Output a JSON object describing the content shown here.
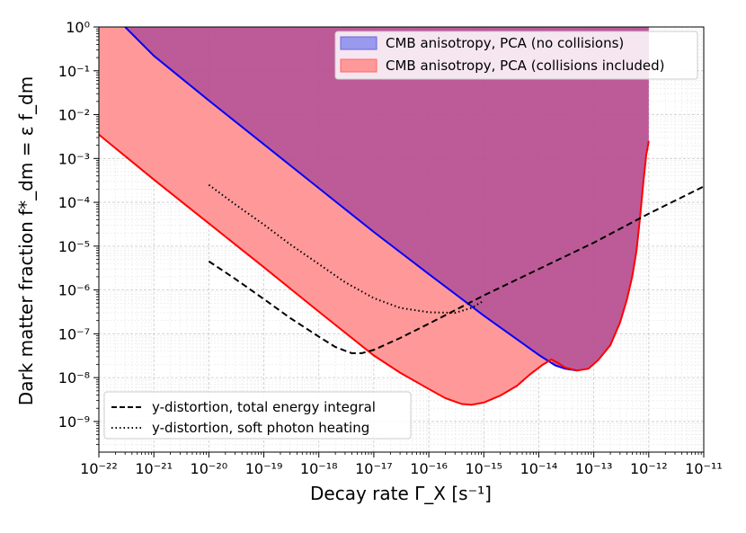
{
  "chart_data": {
    "type": "area",
    "title": "",
    "xlabel": "Decay rate Γ_X [s⁻¹]",
    "ylabel": "Dark matter fraction f*_dm = ε f_dm",
    "xscale": "log",
    "yscale": "log",
    "xlim": [
      1e-22,
      1e-11
    ],
    "ylim": [
      2e-10,
      1
    ],
    "grid": true,
    "x_tick_labels": [
      "10⁻²²",
      "10⁻²¹",
      "10⁻²⁰",
      "10⁻¹⁹",
      "10⁻¹⁸",
      "10⁻¹⁷",
      "10⁻¹⁶",
      "10⁻¹⁵",
      "10⁻¹⁴",
      "10⁻¹³",
      "10⁻¹²",
      "10⁻¹¹"
    ],
    "y_tick_labels": [
      "10⁰",
      "10⁻¹",
      "10⁻²",
      "10⁻³",
      "10⁻⁴",
      "10⁻⁵",
      "10⁻⁶",
      "10⁻⁷",
      "10⁻⁸",
      "10⁻⁹"
    ],
    "series": [
      {
        "name": "CMB anisotropy, PCA (no collisions)",
        "kind": "shaded-region",
        "fill_color": "#9999ee",
        "region_color": "#b84f91",
        "edge_color": "#0000ff",
        "lower_boundary": [
          [
            3e-22,
            1
          ],
          [
            1e-21,
            0.22
          ],
          [
            1e-20,
            0.021
          ],
          [
            1e-19,
            0.0021
          ],
          [
            1e-18,
            0.00021
          ],
          [
            1e-17,
            2.1e-05
          ],
          [
            1e-16,
            2.3e-06
          ],
          [
            1e-15,
            2.6e-07
          ],
          [
            1e-14,
            3.3e-08
          ],
          [
            2e-14,
            1.9e-08
          ],
          [
            3e-14,
            1.6e-08
          ],
          [
            5e-14,
            1.45e-08
          ],
          [
            8e-14,
            1.6e-08
          ],
          [
            1.2e-13,
            2.5e-08
          ],
          [
            2e-13,
            5.5e-08
          ],
          [
            3e-13,
            1.8e-07
          ],
          [
            4e-13,
            6e-07
          ],
          [
            5e-13,
            2e-06
          ],
          [
            6e-13,
            8e-06
          ],
          [
            7e-13,
            5e-05
          ],
          [
            8e-13,
            0.0003
          ],
          [
            9e-13,
            0.0012
          ],
          [
            1e-12,
            0.0025
          ]
        ],
        "x_extent": [
          3e-22,
          1e-12
        ]
      },
      {
        "name": "CMB anisotropy, PCA (collisions included)",
        "kind": "shaded-region",
        "fill_color": "#ff9999",
        "region_color": "#ff9999",
        "edge_color": "#ff0000",
        "upper_boundary": [
          [
            1e-22,
            1
          ],
          [
            3e-22,
            1
          ],
          [
            1e-21,
            0.22
          ],
          [
            1e-20,
            0.021
          ],
          [
            1e-19,
            0.0021
          ],
          [
            1e-18,
            0.00021
          ],
          [
            1e-17,
            2.1e-05
          ],
          [
            1e-16,
            2.3e-06
          ],
          [
            1e-15,
            2.6e-07
          ],
          [
            1e-14,
            3.3e-08
          ],
          [
            1.8e-14,
            2e-08
          ]
        ],
        "lower_boundary": [
          [
            1e-22,
            0.0035
          ],
          [
            1e-21,
            0.00033
          ],
          [
            1e-20,
            3.3e-05
          ],
          [
            1e-19,
            3.3e-06
          ],
          [
            1e-18,
            3.2e-07
          ],
          [
            1e-17,
            3.2e-08
          ],
          [
            3e-17,
            1.3e-08
          ],
          [
            1e-16,
            5.5e-09
          ],
          [
            2e-16,
            3.4e-09
          ],
          [
            4e-16,
            2.5e-09
          ],
          [
            6e-16,
            2.4e-09
          ],
          [
            1e-15,
            2.7e-09
          ],
          [
            2e-15,
            3.9e-09
          ],
          [
            4e-15,
            6.5e-09
          ],
          [
            7e-15,
            1.2e-08
          ],
          [
            1.2e-14,
            2e-08
          ],
          [
            1.7e-14,
            2.6e-08
          ],
          [
            2.2e-14,
            2.2e-08
          ],
          [
            3e-14,
            1.7e-08
          ],
          [
            5e-14,
            1.45e-08
          ],
          [
            8e-14,
            1.6e-08
          ],
          [
            1.2e-13,
            2.5e-08
          ],
          [
            2e-13,
            5.5e-08
          ],
          [
            3e-13,
            1.8e-07
          ],
          [
            4e-13,
            6e-07
          ],
          [
            5e-13,
            2e-06
          ],
          [
            6e-13,
            8e-06
          ],
          [
            7e-13,
            5e-05
          ],
          [
            8e-13,
            0.0003
          ],
          [
            9e-13,
            0.0012
          ],
          [
            1e-12,
            0.0025
          ]
        ]
      },
      {
        "name": "y-distortion, total energy integral",
        "kind": "line",
        "style": "dashed",
        "color": "#000000",
        "points": [
          [
            1e-20,
            4.5e-06
          ],
          [
            3e-20,
            1.8e-06
          ],
          [
            1e-19,
            6.2e-07
          ],
          [
            3e-19,
            2.3e-07
          ],
          [
            1e-18,
            8.6e-08
          ],
          [
            2e-18,
            5e-08
          ],
          [
            4e-18,
            3.6e-08
          ],
          [
            6e-18,
            3.6e-08
          ],
          [
            1e-17,
            4.3e-08
          ],
          [
            3e-17,
            8e-08
          ],
          [
            1e-16,
            1.7e-07
          ],
          [
            1e-15,
            7.5e-07
          ],
          [
            1e-14,
            3e-06
          ],
          [
            1e-13,
            1.2e-05
          ],
          [
            1e-12,
            5.5e-05
          ],
          [
            1e-11,
            0.00023
          ]
        ]
      },
      {
        "name": "y-distortion, soft photon heating",
        "kind": "line",
        "style": "dotted",
        "color": "#000000",
        "points": [
          [
            1e-20,
            0.00025
          ],
          [
            3e-20,
            9e-05
          ],
          [
            1e-19,
            3.1e-05
          ],
          [
            3e-19,
            1.1e-05
          ],
          [
            1e-18,
            3.9e-06
          ],
          [
            3e-18,
            1.5e-06
          ],
          [
            1e-17,
            6.5e-07
          ],
          [
            3e-17,
            3.9e-07
          ],
          [
            1e-16,
            3.1e-07
          ],
          [
            3e-16,
            3e-07
          ],
          [
            6e-16,
            3.9e-07
          ],
          [
            1e-15,
            5.7e-07
          ]
        ]
      }
    ],
    "legend_top": {
      "position": "top-right",
      "entries": [
        {
          "label": "CMB anisotropy, PCA (no collisions)",
          "swatch_fill": "#9999ee",
          "swatch_edge": "#6666dd"
        },
        {
          "label": "CMB anisotropy, PCA (collisions included)",
          "swatch_fill": "#ff9999",
          "swatch_edge": "#ff6666"
        }
      ]
    },
    "legend_bottom": {
      "position": "bottom-left",
      "entries": [
        {
          "label": "y-distortion, total energy integral",
          "style": "dashed"
        },
        {
          "label": "y-distortion, soft photon heating",
          "style": "dotted"
        }
      ]
    }
  }
}
